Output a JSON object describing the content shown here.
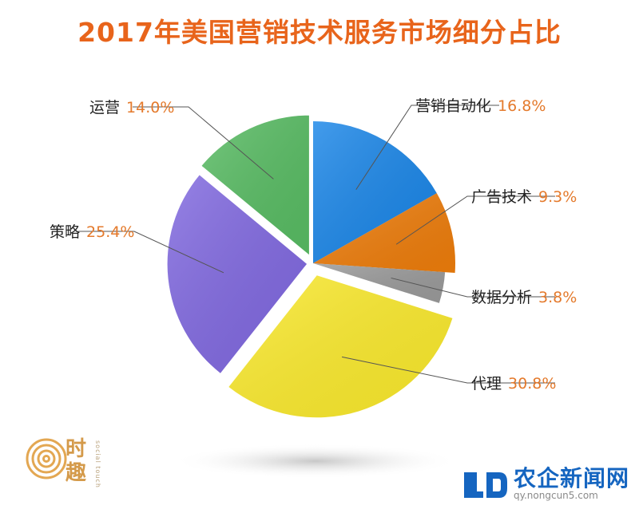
{
  "title": "2017年美国营销技术服务市场细分占比",
  "chart_data": {
    "type": "pie",
    "title": "2017年美国营销技术服务市场细分占比",
    "slices": [
      {
        "label": "营销自动化",
        "value": 16.8,
        "value_text": "16.8%",
        "color": "#1a86e8"
      },
      {
        "label": "广告技术",
        "value": 9.3,
        "value_text": "9.3%",
        "color": "#ee7d0b"
      },
      {
        "label": "数据分析",
        "value": 3.8,
        "value_text": "3.8%",
        "color": "#9a9a9a"
      },
      {
        "label": "代理",
        "value": 30.8,
        "value_text": "30.8%",
        "color": "#fbea2c"
      },
      {
        "label": "策略",
        "value": 25.4,
        "value_text": "25.4%",
        "color": "#8068e0"
      },
      {
        "label": "运营",
        "value": 14.0,
        "value_text": "14.0%",
        "color": "#58bc63"
      }
    ]
  },
  "brand": {
    "name": "时趣",
    "sub": "social touch"
  },
  "watermark": {
    "main": "农企新闻网",
    "url": "qy.nongcun5.com"
  }
}
